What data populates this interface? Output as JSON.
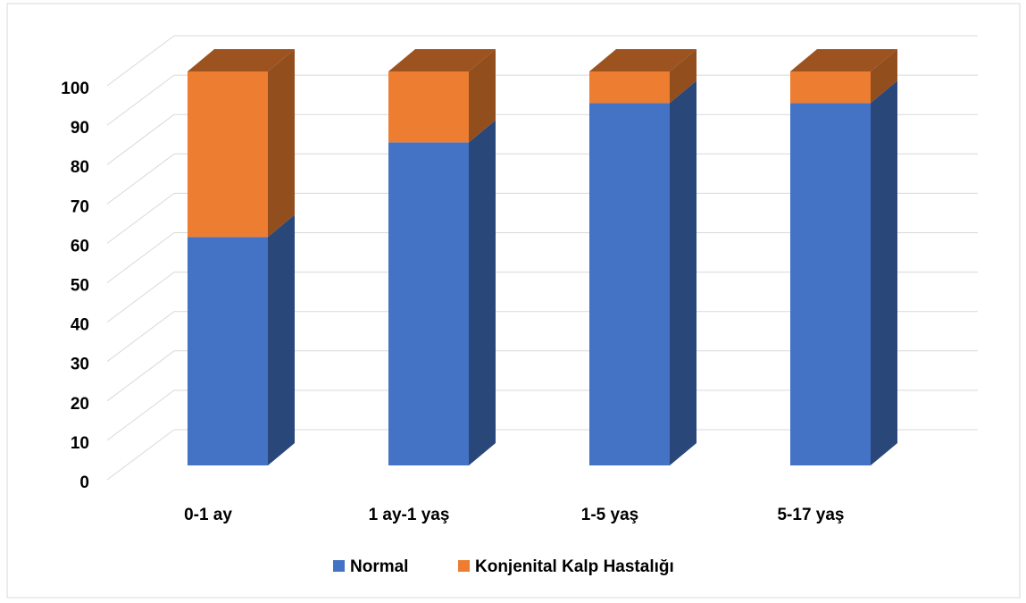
{
  "chart_data": {
    "type": "bar3d_stacked",
    "categories": [
      "0-1 ay",
      "1 ay-1 yaş",
      "1-5 yaş",
      "5-17 yaş"
    ],
    "series": [
      {
        "name": "Normal",
        "color": "#4472c4",
        "values": [
          58,
          82,
          92,
          92
        ]
      },
      {
        "name": "Konjenital Kalp Hastalığı",
        "color": "#ed7d31",
        "values": [
          42,
          18,
          8,
          8
        ]
      }
    ],
    "ylim": [
      0,
      100
    ],
    "yticks": [
      0,
      10,
      20,
      30,
      40,
      50,
      60,
      70,
      80,
      90,
      100
    ],
    "grid": true,
    "legend": "bottom"
  }
}
